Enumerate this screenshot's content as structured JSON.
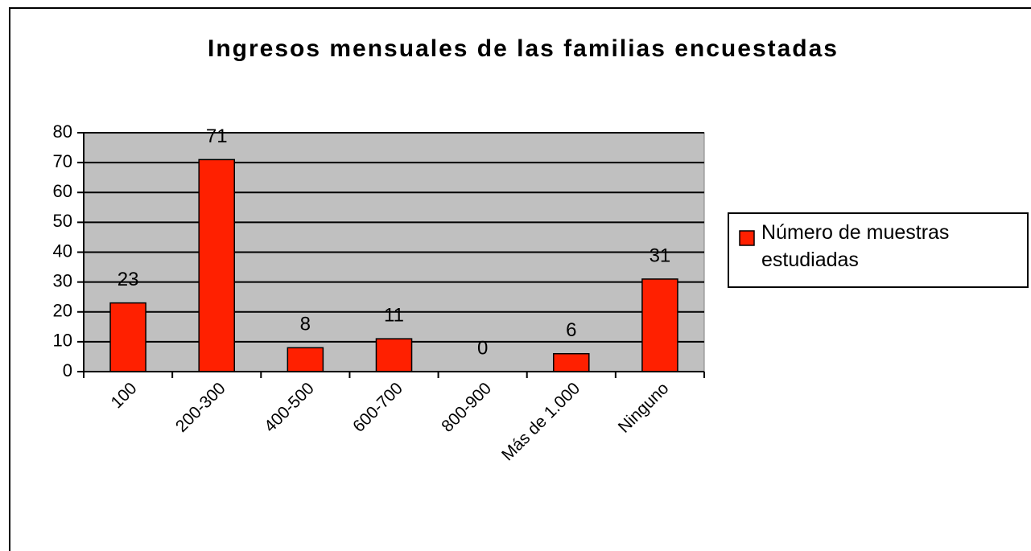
{
  "chart_data": {
    "type": "bar",
    "title": "Ingresos mensuales de las familias encuestadas",
    "categories": [
      "100",
      "200-300",
      "400-500",
      "600-700",
      "800-900",
      "Más de 1.000",
      "Ninguno"
    ],
    "series": [
      {
        "name": "Número de muestras estudiadas",
        "color": "#ff2000",
        "values": [
          23,
          71,
          8,
          11,
          0,
          6,
          31
        ]
      }
    ],
    "ylim": [
      0,
      80
    ],
    "yticks": [
      0,
      10,
      20,
      30,
      40,
      50,
      60,
      70,
      80
    ],
    "grid": true,
    "legend": "right"
  }
}
